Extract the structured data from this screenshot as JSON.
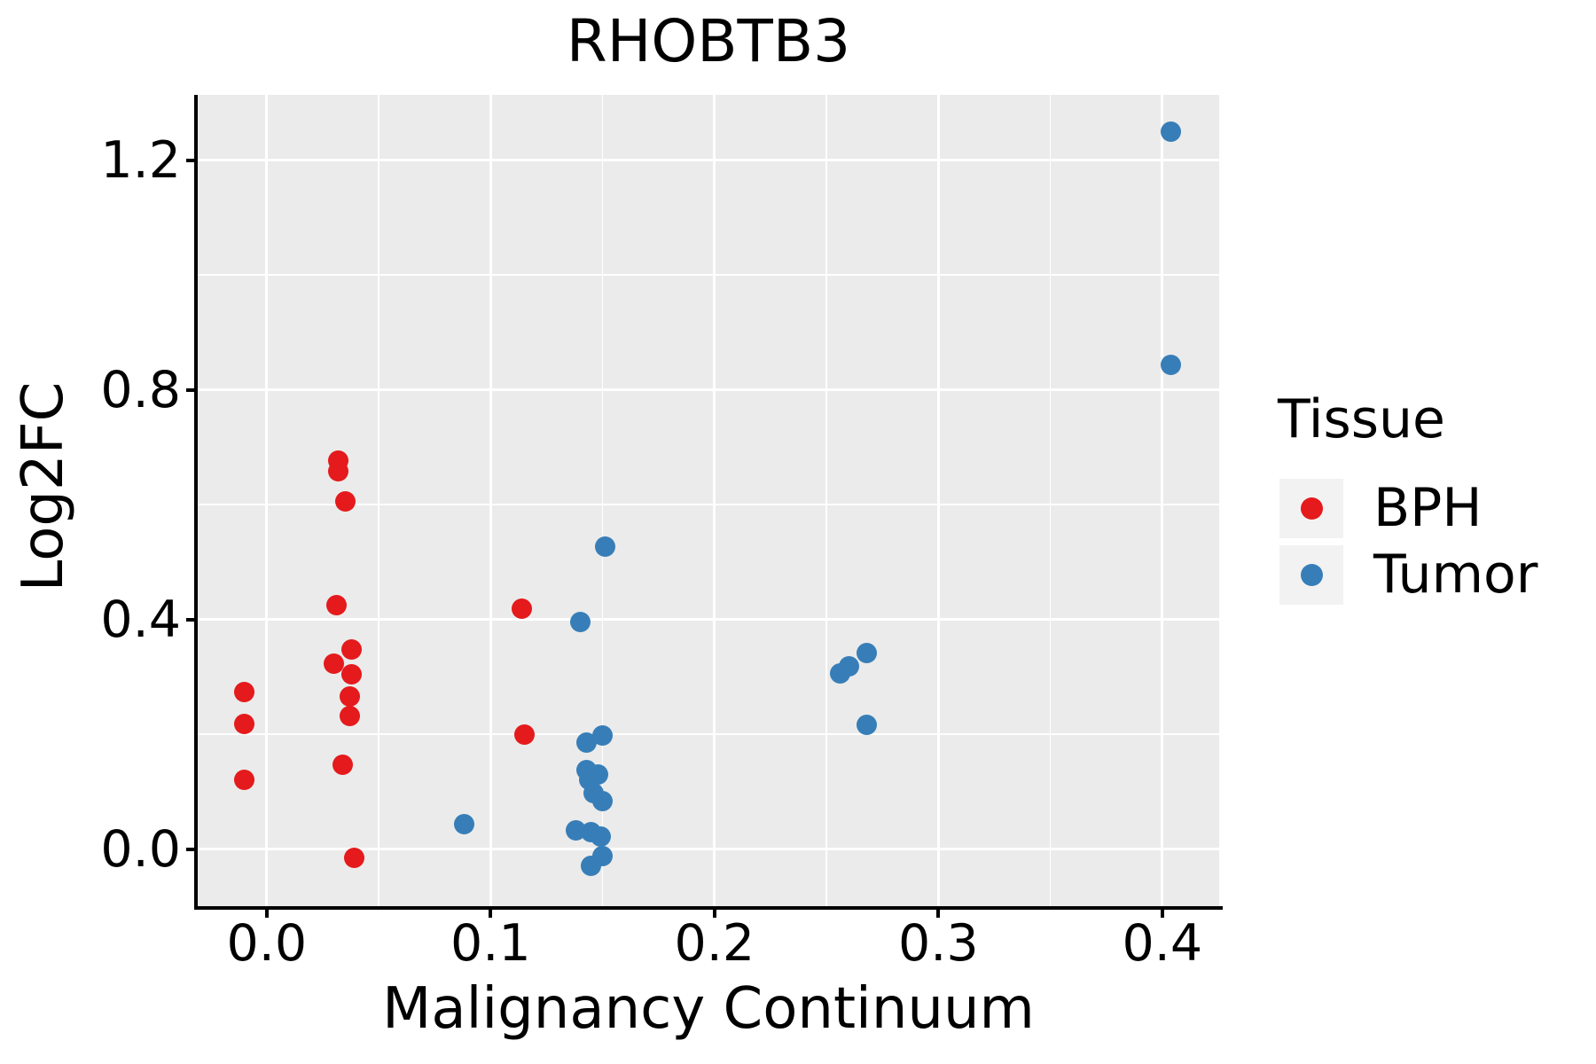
{
  "title": "RHOBTB3",
  "colors": {
    "bph": "#E41A1C",
    "tumor": "#377EB8",
    "panel_background": "#EBEBEB",
    "gridline": "#FFFFFF",
    "legend_key_background": "#F2F2F2",
    "text": "#000000",
    "axis": "#000000"
  },
  "legend": {
    "title": "Tissue",
    "items": [
      {
        "label": "BPH",
        "color": "#E41A1C"
      },
      {
        "label": "Tumor",
        "color": "#377EB8"
      }
    ]
  },
  "chart_data": {
    "type": "scatter",
    "title": "RHOBTB3",
    "xlabel": "Malignancy Continuum",
    "ylabel": "Log2FC",
    "xlim": [
      -0.031,
      0.425
    ],
    "ylim": [
      -0.099,
      1.314
    ],
    "x_ticks": [
      0.0,
      0.1,
      0.2,
      0.3,
      0.4
    ],
    "x_tick_labels": [
      "0.0",
      "0.1",
      "0.2",
      "0.3",
      "0.4"
    ],
    "y_ticks": [
      0.0,
      0.4,
      0.8,
      1.2
    ],
    "y_tick_labels": [
      "0.0",
      "0.4",
      "0.8",
      "1.2"
    ],
    "x_minor_ticks": [
      0.05,
      0.15,
      0.25,
      0.35
    ],
    "y_minor_ticks": [
      0.2,
      0.6,
      1.0
    ],
    "grid": true,
    "legend_position": "right",
    "series": [
      {
        "name": "BPH",
        "color": "#E41A1C",
        "points": [
          [
            -0.01,
            0.274
          ],
          [
            -0.01,
            0.217
          ],
          [
            -0.01,
            0.121
          ],
          [
            0.032,
            0.676
          ],
          [
            0.032,
            0.658
          ],
          [
            0.035,
            0.605
          ],
          [
            0.031,
            0.424
          ],
          [
            0.038,
            0.347
          ],
          [
            0.03,
            0.323
          ],
          [
            0.038,
            0.305
          ],
          [
            0.037,
            0.266
          ],
          [
            0.037,
            0.231
          ],
          [
            0.034,
            0.146
          ],
          [
            0.039,
            -0.016
          ],
          [
            0.114,
            0.419
          ],
          [
            0.115,
            0.199
          ]
        ]
      },
      {
        "name": "Tumor",
        "color": "#377EB8",
        "points": [
          [
            0.088,
            0.043
          ],
          [
            0.14,
            0.395
          ],
          [
            0.151,
            0.527
          ],
          [
            0.15,
            0.198
          ],
          [
            0.143,
            0.186
          ],
          [
            0.143,
            0.138
          ],
          [
            0.148,
            0.129
          ],
          [
            0.144,
            0.12
          ],
          [
            0.146,
            0.097
          ],
          [
            0.15,
            0.084
          ],
          [
            0.138,
            0.033
          ],
          [
            0.145,
            0.03
          ],
          [
            0.149,
            0.021
          ],
          [
            0.15,
            -0.012
          ],
          [
            0.145,
            -0.03
          ],
          [
            0.256,
            0.306
          ],
          [
            0.26,
            0.318
          ],
          [
            0.268,
            0.341
          ],
          [
            0.268,
            0.216
          ],
          [
            0.404,
            1.249
          ],
          [
            0.404,
            0.843
          ]
        ]
      }
    ]
  }
}
